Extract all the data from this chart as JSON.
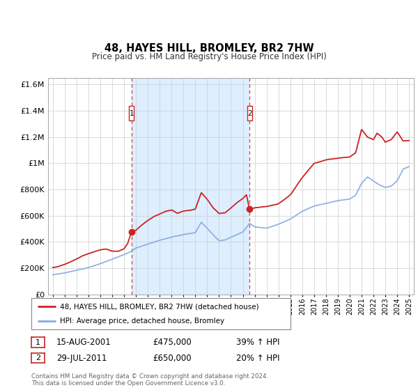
{
  "title": "48, HAYES HILL, BROMLEY, BR2 7HW",
  "subtitle": "Price paid vs. HM Land Registry's House Price Index (HPI)",
  "footer": "Contains HM Land Registry data © Crown copyright and database right 2024.\nThis data is licensed under the Open Government Licence v3.0.",
  "legend_entry1": "48, HAYES HILL, BROMLEY, BR2 7HW (detached house)",
  "legend_entry2": "HPI: Average price, detached house, Bromley",
  "sale1_date": "15-AUG-2001",
  "sale1_price": "£475,000",
  "sale1_hpi": "39% ↑ HPI",
  "sale2_date": "29-JUL-2011",
  "sale2_price": "£650,000",
  "sale2_hpi": "20% ↑ HPI",
  "ylim": [
    0,
    1650000
  ],
  "yticks": [
    0,
    200000,
    400000,
    600000,
    800000,
    1000000,
    1200000,
    1400000,
    1600000
  ],
  "ytick_labels": [
    "£0",
    "£200K",
    "£400K",
    "£600K",
    "£800K",
    "£1M",
    "£1.2M",
    "£1.4M",
    "£1.6M"
  ],
  "plot_bg": "#ffffff",
  "shade_color": "#ddeeff",
  "grid_color": "#cccccc",
  "red_color": "#cc2222",
  "blue_color": "#88aadd",
  "sale1_year": 2001.62,
  "sale2_year": 2011.57,
  "xmin": 1994.6,
  "xmax": 2025.4,
  "xtick_years": [
    1995,
    1996,
    1997,
    1998,
    1999,
    2000,
    2001,
    2002,
    2003,
    2004,
    2005,
    2006,
    2007,
    2008,
    2009,
    2010,
    2011,
    2012,
    2013,
    2014,
    2015,
    2016,
    2017,
    2018,
    2019,
    2020,
    2021,
    2022,
    2023,
    2024,
    2025
  ]
}
